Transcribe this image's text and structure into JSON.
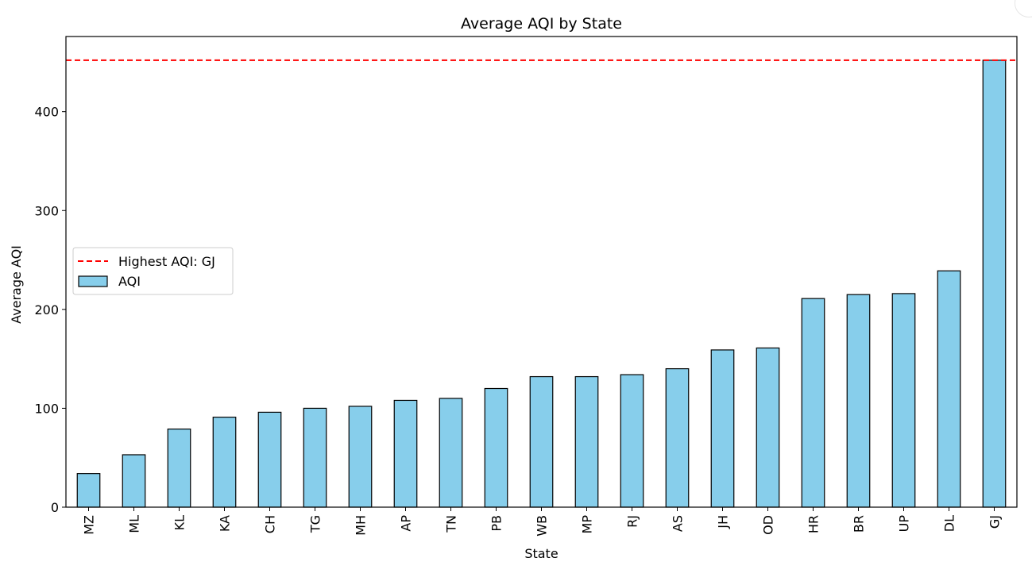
{
  "chart_data": {
    "type": "bar",
    "title": "Average AQI by State",
    "xlabel": "State",
    "ylabel": "Average AQI",
    "categories": [
      "MZ",
      "ML",
      "KL",
      "KA",
      "CH",
      "TG",
      "MH",
      "AP",
      "TN",
      "PB",
      "WB",
      "MP",
      "RJ",
      "AS",
      "JH",
      "OD",
      "HR",
      "BR",
      "UP",
      "DL",
      "GJ"
    ],
    "series": [
      {
        "name": "AQI",
        "values": [
          34,
          53,
          79,
          91,
          96,
          100,
          102,
          108,
          110,
          120,
          132,
          132,
          134,
          140,
          159,
          161,
          211,
          215,
          216,
          239,
          452
        ],
        "color": "#87ceeb",
        "edge_color": "#000000"
      }
    ],
    "reference_line": {
      "label": "Highest AQI: GJ",
      "value": 452,
      "color": "#ff0000",
      "style": "dashed"
    },
    "ylim": [
      0,
      476
    ],
    "yticks": [
      0,
      100,
      200,
      300,
      400
    ],
    "grid": false,
    "legend_position": "center-left"
  }
}
